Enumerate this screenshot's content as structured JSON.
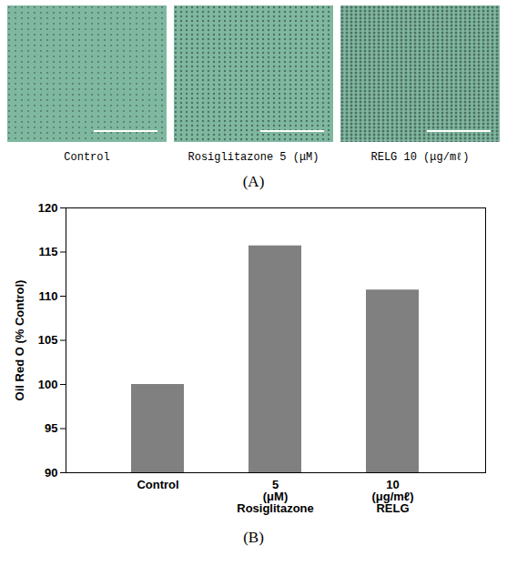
{
  "panel_a": {
    "label": "(A)",
    "captions": [
      "Control",
      "Rosiglitazone 5 (μM)",
      "RELG 10 (μg/mℓ)"
    ]
  },
  "panel_b": {
    "label": "(B)"
  },
  "chart_data": {
    "type": "bar",
    "categories": [
      "Control",
      "5\n(μM)\nRosiglitazone",
      "10\n(μg/mℓ)\nRELG"
    ],
    "values": [
      100,
      115.7,
      110.7
    ],
    "color": "#808080",
    "y_label": "Oil Red O (% Control)",
    "ylim": [
      90,
      120
    ],
    "yticks": [
      90,
      95,
      100,
      105,
      110,
      115,
      120
    ],
    "grid": false
  }
}
